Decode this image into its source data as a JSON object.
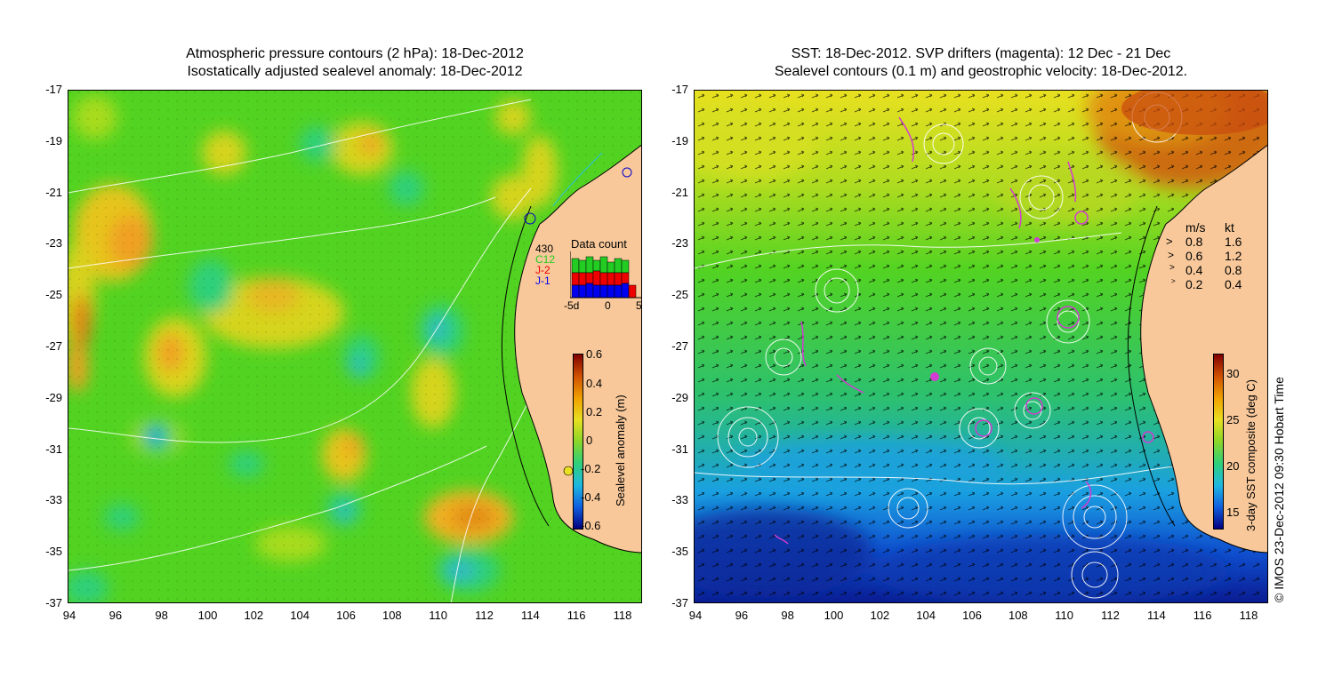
{
  "left_panel": {
    "title_line1": "Atmospheric pressure contours (2 hPa): 18-Dec-2012",
    "title_line2": "Isostatically adjusted sealevel anomaly: 18-Dec-2012",
    "colorbar_label": "Sealevel anomaly (m)",
    "colorbar_ticks": [
      "0.6",
      "0.4",
      "0.2",
      "0",
      "-0.2",
      "-0.4",
      "-0.6"
    ],
    "inset": {
      "title": "Data count",
      "max_count": "430",
      "series": [
        "C12",
        "J-2",
        "J-1"
      ],
      "series_colors": [
        "#22cc22",
        "#ee0000",
        "#0000ee"
      ],
      "x_ticks": [
        "-5d",
        "0",
        "5"
      ]
    }
  },
  "right_panel": {
    "title_line1": "SST: 18-Dec-2012. SVP drifters (magenta): 12 Dec - 21 Dec",
    "title_line2": "Sealevel contours (0.1 m) and geostrophic velocity: 18-Dec-2012.",
    "colorbar_label": "3-day SST composite (deg C)",
    "colorbar_ticks": [
      "30",
      "25",
      "20",
      "15"
    ],
    "velocity_legend": {
      "header_ms": "m/s",
      "header_kt": "kt",
      "rows": [
        {
          "ms": "0.8",
          "kt": "1.6"
        },
        {
          "ms": "0.6",
          "kt": "1.2"
        },
        {
          "ms": "0.4",
          "kt": "0.8"
        },
        {
          "ms": "0.2",
          "kt": "0.4"
        }
      ]
    }
  },
  "axes": {
    "y_ticks": [
      "-17",
      "-19",
      "-21",
      "-23",
      "-25",
      "-27",
      "-29",
      "-31",
      "-33",
      "-35",
      "-37"
    ],
    "x_ticks": [
      "94",
      "96",
      "98",
      "100",
      "102",
      "104",
      "106",
      "108",
      "110",
      "112",
      "114",
      "116",
      "118"
    ]
  },
  "credit": "© IMOS 23-Dec-2012 09:30 Hobart Time",
  "colors": {
    "land": "#f8c89a",
    "ocean_base": "#4fd61e",
    "drifter": "#d23cd2"
  }
}
